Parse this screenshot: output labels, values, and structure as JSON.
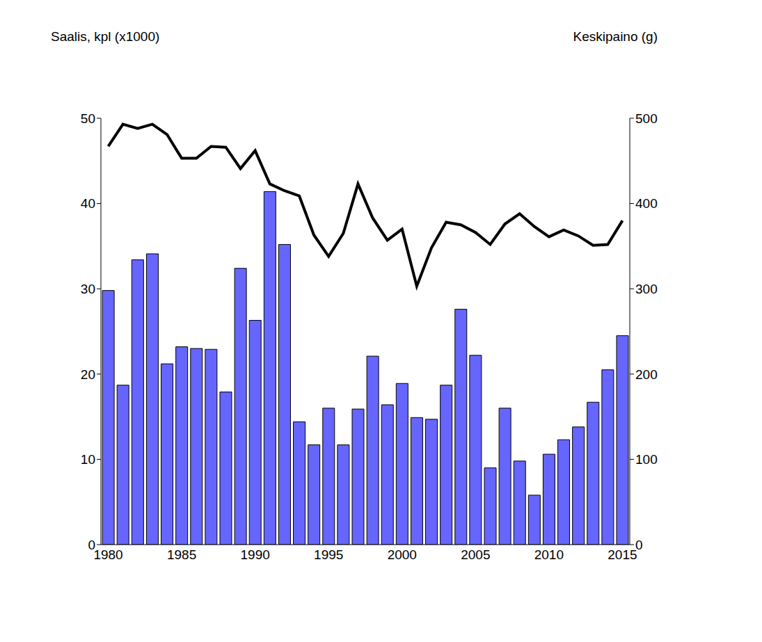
{
  "chart_data": {
    "type": "bar",
    "ylabel": "Saalis, kpl (x1000)",
    "y2label": "Keskipaino (g)",
    "categories": [
      "1980",
      null,
      null,
      null,
      null,
      "1985",
      null,
      null,
      null,
      null,
      "1990",
      null,
      null,
      null,
      null,
      "1995",
      null,
      null,
      null,
      null,
      "2000",
      null,
      null,
      null,
      null,
      "2005",
      null,
      null,
      null,
      null,
      "2010",
      null,
      null,
      null,
      null,
      "2015"
    ],
    "ylim": [
      0,
      50
    ],
    "yticks": [
      0,
      10,
      20,
      30,
      40,
      50
    ],
    "y2lim": [
      0,
      500
    ],
    "y2ticks": [
      0,
      100,
      200,
      300,
      400,
      500
    ],
    "grid": false,
    "series": [
      {
        "type": "bar",
        "color": "#6666ff",
        "values": [
          29.8,
          18.7,
          33.4,
          34.1,
          21.2,
          23.2,
          23.0,
          22.9,
          17.9,
          32.4,
          26.3,
          41.4,
          35.2,
          14.4,
          11.7,
          16.0,
          11.7,
          15.9,
          22.1,
          16.4,
          18.9,
          14.9,
          14.7,
          18.7,
          27.6,
          22.2,
          9.0,
          16.0,
          9.8,
          5.8,
          10.6,
          12.3,
          13.8,
          16.7,
          20.5,
          24.5
        ]
      },
      {
        "type": "line",
        "color": "#000000",
        "axis": "y2",
        "values": [
          467,
          493,
          488,
          493,
          481,
          453,
          453,
          467,
          466,
          441,
          462,
          423,
          415,
          409,
          363,
          338,
          365,
          423,
          383,
          357,
          370,
          303,
          348,
          378,
          375,
          366,
          352,
          376,
          388,
          373,
          361,
          369,
          362,
          351,
          352,
          380
        ]
      }
    ]
  }
}
